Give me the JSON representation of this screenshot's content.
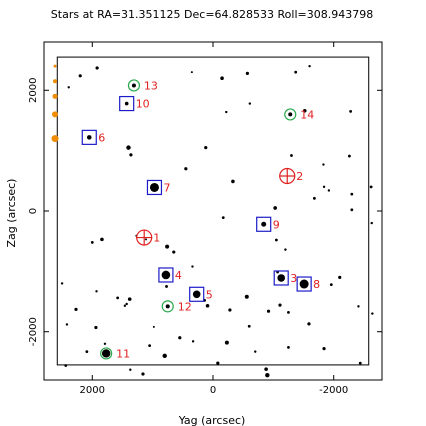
{
  "chart_data": {
    "type": "scatter",
    "title": "Stars at RA=31.351125 Dec=64.828533 Roll=308.943798",
    "xlabel": "Yag (arcsec)",
    "ylabel": "Zag (arcsec)",
    "xlim": [
      2800,
      -2800
    ],
    "ylim": [
      -2800,
      2800
    ],
    "x_ticks": [
      -2000,
      0,
      2000
    ],
    "y_ticks": [
      -2000,
      0,
      2000
    ],
    "x_tick_labels": [
      "-2000",
      "0",
      "2000"
    ],
    "y_tick_labels": [
      "-2000",
      "0",
      "2000"
    ],
    "grid": false,
    "field_of_view_box": {
      "yag": [
        -2580,
        2580
      ],
      "zag": [
        -2550,
        2550
      ]
    },
    "colors": {
      "guide": "#1c1cc8",
      "acquisition": "#2aa84a",
      "fid": "#e02020",
      "label": "#e02020",
      "star": "#000000",
      "mag_scale": "#f08c00"
    },
    "fids": [
      {
        "id": "1",
        "yag": 1140,
        "zag": -440
      },
      {
        "id": "2",
        "yag": -1230,
        "zag": 580
      }
    ],
    "guide_stars": [
      {
        "id": "3",
        "yag": -1130,
        "zag": -1110,
        "size": 3.8
      },
      {
        "id": "4",
        "yag": 780,
        "zag": -1060,
        "size": 4.3
      },
      {
        "id": "5",
        "yag": 270,
        "zag": -1380,
        "size": 3.8
      },
      {
        "id": "6",
        "yag": 2050,
        "zag": 1220,
        "size": 2.3
      },
      {
        "id": "7",
        "yag": 970,
        "zag": 390,
        "size": 4.5
      },
      {
        "id": "8",
        "yag": -1510,
        "zag": -1210,
        "size": 4.5
      },
      {
        "id": "9",
        "yag": -840,
        "zag": -220,
        "size": 2.5
      },
      {
        "id": "10",
        "yag": 1430,
        "zag": 1780,
        "size": 1.8
      }
    ],
    "acq_stars": [
      {
        "id": "11",
        "yag": 1770,
        "zag": -2360,
        "size": 4.2
      },
      {
        "id": "12",
        "yag": 750,
        "zag": -1580,
        "size": 2.0
      },
      {
        "id": "13",
        "yag": 1310,
        "zag": 2080,
        "size": 2.0
      },
      {
        "id": "14",
        "yag": -1280,
        "zag": 1600,
        "size": 2.0
      }
    ],
    "field_stars": [
      {
        "yag": -1600,
        "zag": 2400,
        "size": 1.2
      },
      {
        "yag": -1370,
        "zag": 2300,
        "size": 1.4
      },
      {
        "yag": -570,
        "zag": 2280,
        "size": 1.6
      },
      {
        "yag": -150,
        "zag": 2200,
        "size": 1.8
      },
      {
        "yag": 350,
        "zag": 2300,
        "size": 1.0
      },
      {
        "yag": 1920,
        "zag": 2370,
        "size": 1.6
      },
      {
        "yag": 2200,
        "zag": 2240,
        "size": 1.6
      },
      {
        "yag": 2390,
        "zag": 2050,
        "size": 1.2
      },
      {
        "yag": -2280,
        "zag": 1650,
        "size": 1.4
      },
      {
        "yag": -1520,
        "zag": 1660,
        "size": 1.8
      },
      {
        "yag": -610,
        "zag": 1780,
        "size": 1.2
      },
      {
        "yag": 120,
        "zag": 1050,
        "size": 1.6
      },
      {
        "yag": 1400,
        "zag": 1050,
        "size": 2.2
      },
      {
        "yag": 1360,
        "zag": 930,
        "size": 1.6
      },
      {
        "yag": -220,
        "zag": 1640,
        "size": 1.2
      },
      {
        "yag": -2260,
        "zag": 910,
        "size": 1.4
      },
      {
        "yag": -1300,
        "zag": 920,
        "size": 1.4
      },
      {
        "yag": -1830,
        "zag": 770,
        "size": 1.2
      },
      {
        "yag": 450,
        "zag": 700,
        "size": 1.6
      },
      {
        "yag": -330,
        "zag": 490,
        "size": 1.8
      },
      {
        "yag": -1840,
        "zag": 400,
        "size": 1.2
      },
      {
        "yag": -1920,
        "zag": 340,
        "size": 1.2
      },
      {
        "yag": -2300,
        "zag": 280,
        "size": 1.4
      },
      {
        "yag": -2620,
        "zag": 400,
        "size": 1.4
      },
      {
        "yag": -1680,
        "zag": 210,
        "size": 1.4
      },
      {
        "yag": -1030,
        "zag": 50,
        "size": 1.8
      },
      {
        "yag": -2300,
        "zag": 20,
        "size": 1.4
      },
      {
        "yag": -170,
        "zag": -110,
        "size": 1.4
      },
      {
        "yag": 1270,
        "zag": -410,
        "size": 1.0
      },
      {
        "yag": 1110,
        "zag": -470,
        "size": 1.0
      },
      {
        "yag": -1050,
        "zag": -480,
        "size": 1.4
      },
      {
        "yag": 1840,
        "zag": -470,
        "size": 1.8
      },
      {
        "yag": -2630,
        "zag": -200,
        "size": 1.2
      },
      {
        "yag": 2000,
        "zag": -520,
        "size": 1.4
      },
      {
        "yag": 760,
        "zag": -590,
        "size": 2.0
      },
      {
        "yag": 650,
        "zag": -680,
        "size": 1.6
      },
      {
        "yag": 340,
        "zag": -920,
        "size": 1.2
      },
      {
        "yag": -1200,
        "zag": -640,
        "size": 1.2
      },
      {
        "yag": -1070,
        "zag": -1010,
        "size": 1.4
      },
      {
        "yag": -2100,
        "zag": -1100,
        "size": 1.6
      },
      {
        "yag": -1960,
        "zag": -1220,
        "size": 1.4
      },
      {
        "yag": 2500,
        "zag": -1200,
        "size": 1.2
      },
      {
        "yag": 1380,
        "zag": -1460,
        "size": 1.8
      },
      {
        "yag": 1580,
        "zag": -1440,
        "size": 1.4
      },
      {
        "yag": 1930,
        "zag": -1330,
        "size": 1.2
      },
      {
        "yag": -560,
        "zag": -1420,
        "size": 2.0
      },
      {
        "yag": -280,
        "zag": -1640,
        "size": 1.6
      },
      {
        "yag": 1430,
        "zag": -1540,
        "size": 1.2
      },
      {
        "yag": 140,
        "zag": -1480,
        "size": 1.4
      },
      {
        "yag": 90,
        "zag": -1570,
        "size": 1.8
      },
      {
        "yag": -600,
        "zag": -1910,
        "size": 1.4
      },
      {
        "yag": -1250,
        "zag": -1680,
        "size": 1.4
      },
      {
        "yag": -1590,
        "zag": -1870,
        "size": 1.6
      },
      {
        "yag": 980,
        "zag": -1920,
        "size": 1.0
      },
      {
        "yag": -920,
        "zag": -1660,
        "size": 1.6
      },
      {
        "yag": -1110,
        "zag": -1560,
        "size": 1.6
      },
      {
        "yag": 2270,
        "zag": -1630,
        "size": 1.6
      },
      {
        "yag": 2420,
        "zag": -1880,
        "size": 1.2
      },
      {
        "yag": 550,
        "zag": -2100,
        "size": 1.6
      },
      {
        "yag": 2090,
        "zag": -2330,
        "size": 1.4
      },
      {
        "yag": 1790,
        "zag": -2200,
        "size": 1.2
      },
      {
        "yag": 1050,
        "zag": -2230,
        "size": 1.4
      },
      {
        "yag": -230,
        "zag": -2180,
        "size": 2.0
      },
      {
        "yag": 330,
        "zag": -2160,
        "size": 1.2
      },
      {
        "yag": -700,
        "zag": -2330,
        "size": 1.2
      },
      {
        "yag": -1840,
        "zag": -2280,
        "size": 1.6
      },
      {
        "yag": -1250,
        "zag": -2260,
        "size": 1.4
      },
      {
        "yag": 800,
        "zag": -2400,
        "size": 2.2
      },
      {
        "yag": -880,
        "zag": -2620,
        "size": 1.8
      },
      {
        "yag": -80,
        "zag": -2520,
        "size": 1.6
      },
      {
        "yag": 2440,
        "zag": -2560,
        "size": 1.4
      },
      {
        "yag": 1370,
        "zag": -2630,
        "size": 1.2
      },
      {
        "yag": 1160,
        "zag": -2700,
        "size": 1.6
      },
      {
        "yag": -900,
        "zag": -2720,
        "size": 2.2
      },
      {
        "yag": -2640,
        "zag": -1700,
        "size": 1.2
      },
      {
        "yag": -2440,
        "zag": -2520,
        "size": 1.4
      },
      {
        "yag": 1940,
        "zag": -1930,
        "size": 1.6
      },
      {
        "yag": -2410,
        "zag": -1580,
        "size": 1.2
      },
      {
        "yag": 770,
        "zag": -1250,
        "size": 1.4
      },
      {
        "yag": 1460,
        "zag": -1570,
        "size": 1.2
      }
    ],
    "magnitude_scale": [
      {
        "zag": 2400,
        "size": 1.5
      },
      {
        "zag": 2150,
        "size": 2.0
      },
      {
        "zag": 1900,
        "size": 2.5
      },
      {
        "zag": 1600,
        "size": 3.0
      },
      {
        "zag": 1200,
        "size": 3.5
      }
    ]
  }
}
